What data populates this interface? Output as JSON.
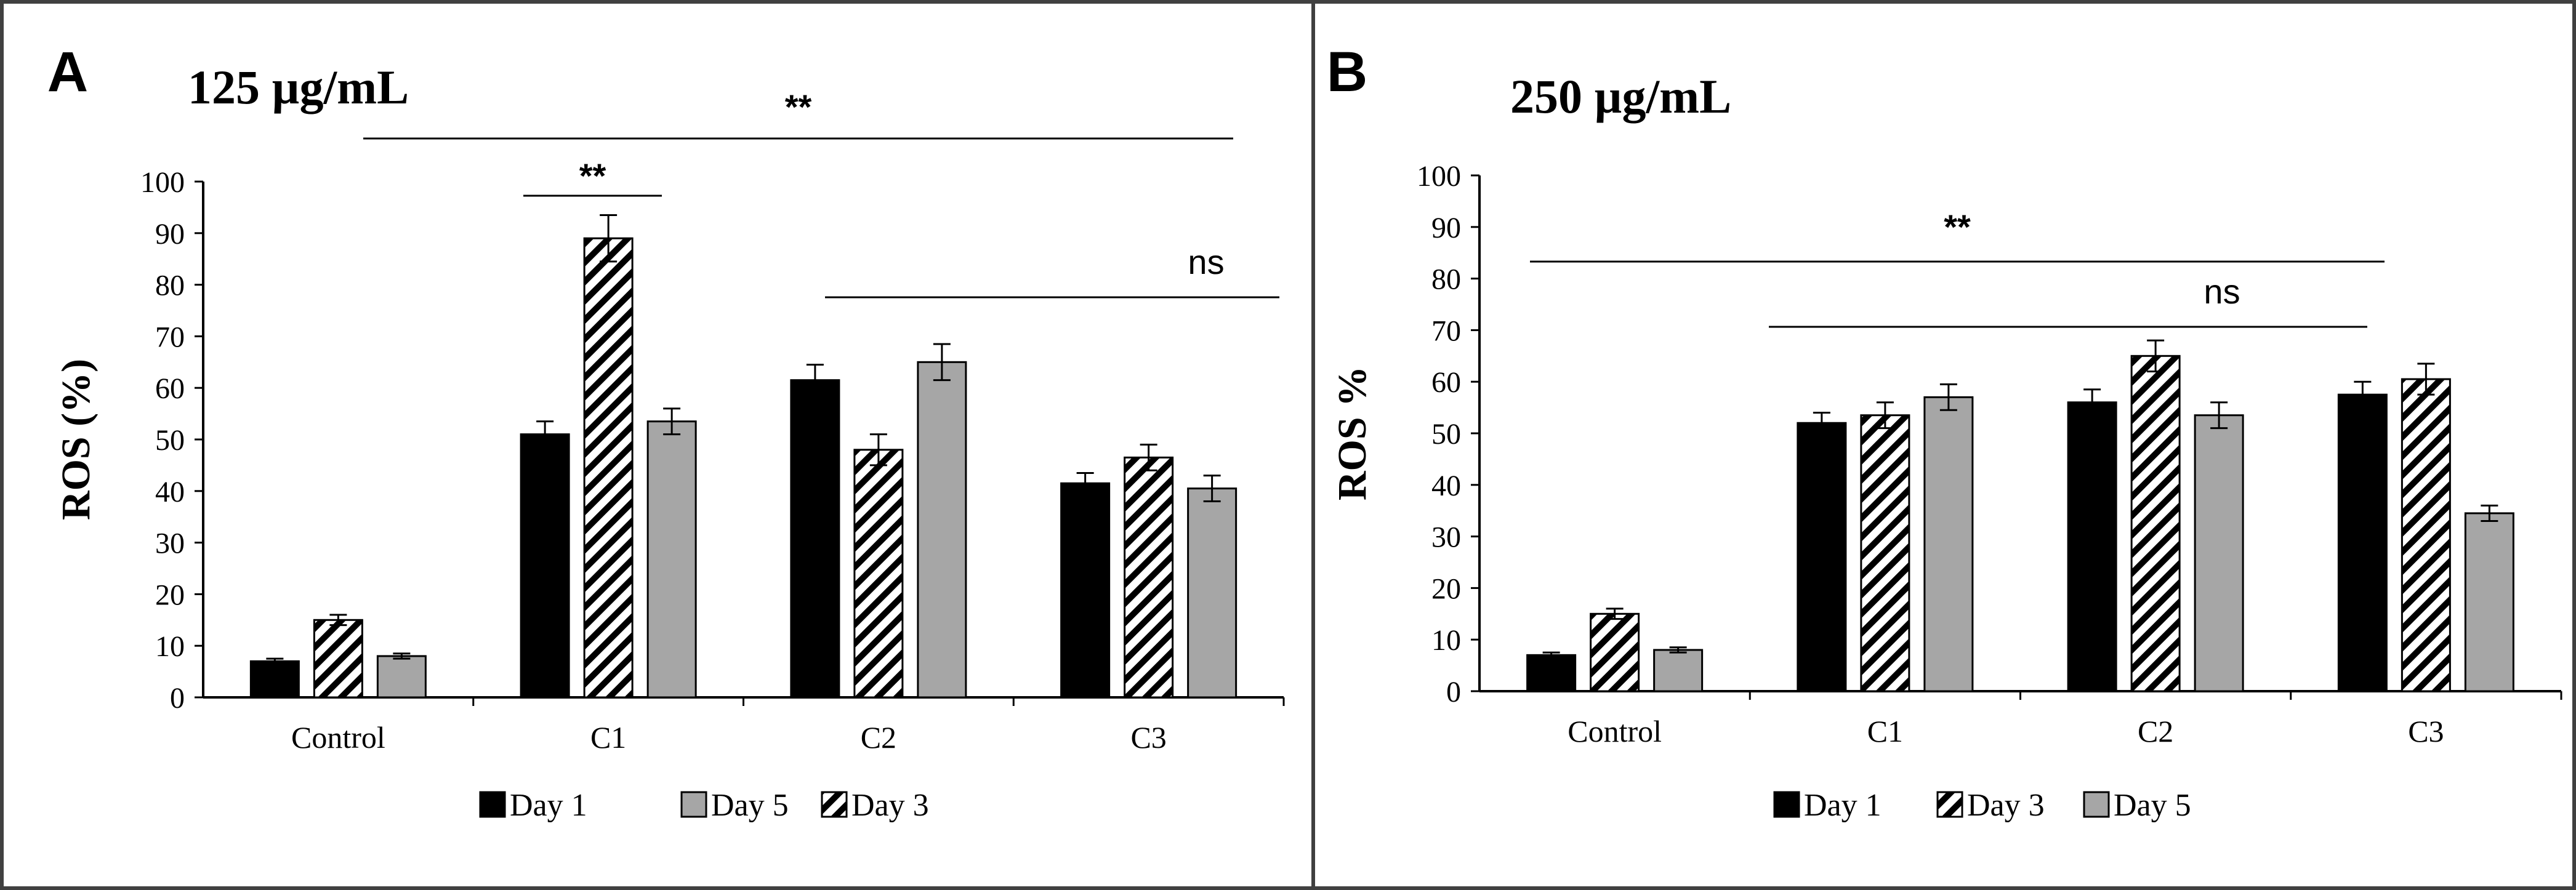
{
  "colors": {
    "day1": "#000000",
    "day3_fill": "#ffffff",
    "day3_stripe": "#000000",
    "day5": "#a6a6a6",
    "axis": "#000000",
    "error_bar": "#000000",
    "frame": "#404040"
  },
  "chart_data": [
    {
      "type": "bar",
      "panel": "A",
      "title": "125 µg/mL",
      "xlabel": "",
      "ylabel": "ROS (%)",
      "ylim": [
        0,
        100
      ],
      "yticks": [
        "0",
        "10",
        "20",
        "30",
        "40",
        "50",
        "60",
        "70",
        "80",
        "90",
        "100"
      ],
      "grid": false,
      "legend_position": "bottom",
      "categories": [
        "Control",
        "C1",
        "C2",
        "C3"
      ],
      "series": [
        {
          "name": "Day 1",
          "values": [
            7,
            51,
            61.5,
            41.5
          ],
          "errors": [
            0.5,
            2.5,
            3,
            2
          ]
        },
        {
          "name": "Day 3",
          "values": [
            15,
            89,
            48,
            46.5
          ],
          "errors": [
            1,
            4.5,
            3,
            2.5
          ]
        },
        {
          "name": "Day 5",
          "values": [
            8,
            53.5,
            65,
            40.5
          ],
          "errors": [
            0.5,
            2.5,
            3.5,
            2.5
          ]
        }
      ],
      "annotations": [
        {
          "label": "**",
          "from": "Control",
          "to": "C3"
        },
        {
          "label": "**",
          "from": "C1 Day 1",
          "to": "C1 Day 5"
        },
        {
          "label": "ns",
          "from": "C2",
          "to": "C3"
        }
      ]
    },
    {
      "type": "bar",
      "panel": "B",
      "title": "250 µg/mL",
      "xlabel": "",
      "ylabel": "ROS %",
      "ylim": [
        0,
        100
      ],
      "yticks": [
        "0",
        "10",
        "20",
        "30",
        "40",
        "50",
        "60",
        "70",
        "80",
        "90",
        "100"
      ],
      "grid": false,
      "legend_position": "bottom",
      "categories": [
        "Control",
        "C1",
        "C2",
        "C3"
      ],
      "series": [
        {
          "name": "Day 1",
          "values": [
            7,
            52,
            56,
            57.5
          ],
          "errors": [
            0.5,
            2,
            2.5,
            2.5
          ]
        },
        {
          "name": "Day 3",
          "values": [
            15,
            53.5,
            65,
            60.5
          ],
          "errors": [
            1,
            2.5,
            3,
            3
          ]
        },
        {
          "name": "Day 5",
          "values": [
            8,
            57,
            53.5,
            34.5
          ],
          "errors": [
            0.5,
            2.5,
            2.5,
            1.5
          ]
        }
      ],
      "annotations": [
        {
          "label": "**",
          "from": "Control",
          "to": "C3"
        },
        {
          "label": "ns",
          "from": "C1",
          "to": "C3"
        }
      ]
    }
  ]
}
